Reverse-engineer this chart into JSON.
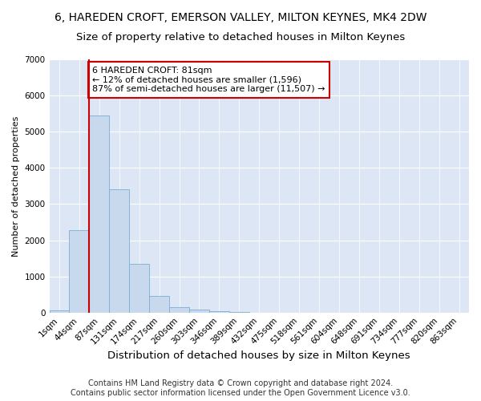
{
  "title": "6, HAREDEN CROFT, EMERSON VALLEY, MILTON KEYNES, MK4 2DW",
  "subtitle": "Size of property relative to detached houses in Milton Keynes",
  "xlabel": "Distribution of detached houses by size in Milton Keynes",
  "ylabel": "Number of detached properties",
  "bin_labels": [
    "1sqm",
    "44sqm",
    "87sqm",
    "131sqm",
    "174sqm",
    "217sqm",
    "260sqm",
    "303sqm",
    "346sqm",
    "389sqm",
    "432sqm",
    "475sqm",
    "518sqm",
    "561sqm",
    "604sqm",
    "648sqm",
    "691sqm",
    "734sqm",
    "777sqm",
    "820sqm",
    "863sqm"
  ],
  "bar_heights": [
    60,
    2270,
    5450,
    3400,
    1340,
    450,
    160,
    80,
    30,
    5,
    2,
    0,
    0,
    0,
    0,
    0,
    0,
    0,
    0,
    0,
    0
  ],
  "bar_color": "#c8d8ed",
  "bar_edge_color": "#7aafd4",
  "red_line_index": 2,
  "highlight_edge_color": "#cc0000",
  "annotation_text": "6 HAREDEN CROFT: 81sqm\n← 12% of detached houses are smaller (1,596)\n87% of semi-detached houses are larger (11,507) →",
  "annotation_box_color": "white",
  "annotation_box_edge_color": "#cc0000",
  "ylim": [
    0,
    7000
  ],
  "yticks": [
    0,
    1000,
    2000,
    3000,
    4000,
    5000,
    6000,
    7000
  ],
  "footer1": "Contains HM Land Registry data © Crown copyright and database right 2024.",
  "footer2": "Contains public sector information licensed under the Open Government Licence v3.0.",
  "background_color": "#ffffff",
  "plot_bg_color": "#dce6f5",
  "title_fontsize": 10,
  "subtitle_fontsize": 9.5,
  "xlabel_fontsize": 9.5,
  "ylabel_fontsize": 8,
  "tick_fontsize": 7.5,
  "annotation_fontsize": 8,
  "footer_fontsize": 7
}
